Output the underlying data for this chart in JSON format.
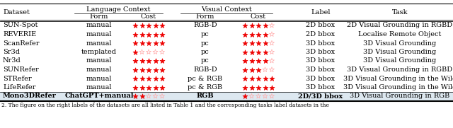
{
  "caption": "2. The figure on the right labels of the datasets are all listed in Table 1 and the corresponding tasks label datasets in the",
  "rows": [
    {
      "dataset": "SUN-Spot",
      "lc_form": "manual",
      "lc_cost": [
        5,
        0
      ],
      "vc_form": "RGB-D",
      "vc_cost": [
        4,
        1
      ],
      "label": "2D bbox",
      "task": "2D Visual Grounding in RGBD",
      "bold": false
    },
    {
      "dataset": "REVERIE",
      "lc_form": "manual",
      "lc_cost": [
        5,
        0
      ],
      "vc_form": "pc",
      "vc_cost": [
        4,
        1
      ],
      "label": "2D bbox",
      "task": "Localise Remote Object",
      "bold": false
    },
    {
      "dataset": "ScanRefer",
      "lc_form": "manual",
      "lc_cost": [
        5,
        0
      ],
      "vc_form": "pc",
      "vc_cost": [
        4,
        1
      ],
      "label": "3D bbox",
      "task": "3D Visual Grounding",
      "bold": false
    },
    {
      "dataset": "Sr3d",
      "lc_form": "templated",
      "lc_cost": [
        1,
        4
      ],
      "vc_form": "pc",
      "vc_cost": [
        4,
        1
      ],
      "label": "3D bbox",
      "task": "3D Visual Grounding",
      "bold": false
    },
    {
      "dataset": "Nr3d",
      "lc_form": "manual",
      "lc_cost": [
        5,
        0
      ],
      "vc_form": "pc",
      "vc_cost": [
        4,
        1
      ],
      "label": "3D bbox",
      "task": "3D Visual Grounding",
      "bold": false
    },
    {
      "dataset": "SUNRefer",
      "lc_form": "manual",
      "lc_cost": [
        5,
        0
      ],
      "vc_form": "RGB-D",
      "vc_cost": [
        3,
        2
      ],
      "label": "3D bbox",
      "task": "3D Visual Grounding in RGBD",
      "bold": false
    },
    {
      "dataset": "STRefer",
      "lc_form": "manual",
      "lc_cost": [
        5,
        0
      ],
      "vc_form": "pc & RGB",
      "vc_cost": [
        5,
        0
      ],
      "label": "3D bbox",
      "task": "3D Visual Grounding in the Wild",
      "bold": false
    },
    {
      "dataset": "LifeRefer",
      "lc_form": "manual",
      "lc_cost": [
        5,
        0
      ],
      "vc_form": "pc & RGB",
      "vc_cost": [
        5,
        0
      ],
      "label": "3D bbox",
      "task": "3D Visual Grounding in the Wild",
      "bold": false
    },
    {
      "dataset": "Mono3DRefer",
      "lc_form": "ChatGPT+manual",
      "lc_cost": [
        2,
        3
      ],
      "vc_form": "RGB",
      "vc_cost": [
        1,
        4
      ],
      "label": "2D/3D bbox",
      "task": "3D Visual Grounding in RGB",
      "bold": true
    }
  ],
  "star_color_filled": "#ee0000",
  "star_color_empty": "#ffaaaa",
  "bg_last_row": "#dde8f0",
  "font_size": 7.0,
  "header_font_size": 7.0
}
